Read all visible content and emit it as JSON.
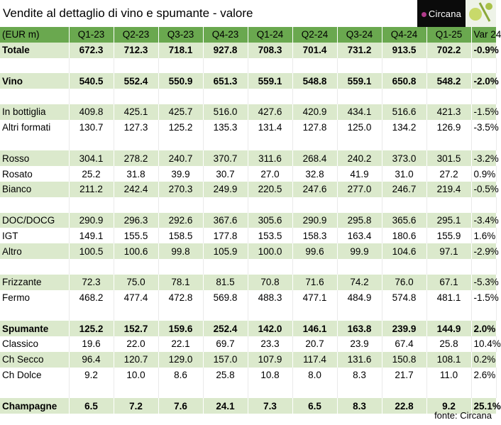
{
  "title": "Vendite al dettaglio di vino e spumante - valore",
  "logo": {
    "text": "Circana",
    "accent": "#b03a8a"
  },
  "header": [
    "(EUR m)",
    "Q1-23",
    "Q2-23",
    "Q3-23",
    "Q4-23",
    "Q1-24",
    "Q2-24",
    "Q3-24",
    "Q4-24",
    "Q1-25",
    "Var 24"
  ],
  "rows": {
    "totale": [
      "Totale",
      "672.3",
      "712.3",
      "718.1",
      "927.8",
      "708.3",
      "701.4",
      "731.2",
      "913.5",
      "702.2",
      "-0.9%"
    ],
    "vino": [
      "Vino",
      "540.5",
      "552.4",
      "550.9",
      "651.3",
      "559.1",
      "548.8",
      "559.1",
      "650.8",
      "548.2",
      "-2.0%"
    ],
    "in_bottiglia": [
      "In bottiglia",
      "409.8",
      "425.1",
      "425.7",
      "516.0",
      "427.6",
      "420.9",
      "434.1",
      "516.6",
      "421.3",
      "-1.5%"
    ],
    "altri_formati": [
      "Altri formati",
      "130.7",
      "127.3",
      "125.2",
      "135.3",
      "131.4",
      "127.8",
      "125.0",
      "134.2",
      "126.9",
      "-3.5%"
    ],
    "rosso": [
      "Rosso",
      "304.1",
      "278.2",
      "240.7",
      "370.7",
      "311.6",
      "268.4",
      "240.2",
      "373.0",
      "301.5",
      "-3.2%"
    ],
    "rosato": [
      "Rosato",
      "25.2",
      "31.8",
      "39.9",
      "30.7",
      "27.0",
      "32.8",
      "41.9",
      "31.0",
      "27.2",
      "0.9%"
    ],
    "bianco": [
      "Bianco",
      "211.2",
      "242.4",
      "270.3",
      "249.9",
      "220.5",
      "247.6",
      "277.0",
      "246.7",
      "219.4",
      "-0.5%"
    ],
    "doc_docg": [
      "DOC/DOCG",
      "290.9",
      "296.3",
      "292.6",
      "367.6",
      "305.6",
      "290.9",
      "295.8",
      "365.6",
      "295.1",
      "-3.4%"
    ],
    "igt": [
      "IGT",
      "149.1",
      "155.5",
      "158.5",
      "177.8",
      "153.5",
      "158.3",
      "163.4",
      "180.6",
      "155.9",
      "1.6%"
    ],
    "altro": [
      "Altro",
      "100.5",
      "100.6",
      "99.8",
      "105.9",
      "100.0",
      "99.6",
      "99.9",
      "104.6",
      "97.1",
      "-2.9%"
    ],
    "frizzante": [
      "Frizzante",
      "72.3",
      "75.0",
      "78.1",
      "81.5",
      "70.8",
      "71.6",
      "74.2",
      "76.0",
      "67.1",
      "-5.3%"
    ],
    "fermo": [
      "Fermo",
      "468.2",
      "477.4",
      "472.8",
      "569.8",
      "488.3",
      "477.1",
      "484.9",
      "574.8",
      "481.1",
      "-1.5%"
    ],
    "spumante": [
      "Spumante",
      "125.2",
      "152.7",
      "159.6",
      "252.4",
      "142.0",
      "146.1",
      "163.8",
      "239.9",
      "144.9",
      "2.0%"
    ],
    "classico": [
      "Classico",
      "19.6",
      "22.0",
      "22.1",
      "69.7",
      "23.3",
      "20.7",
      "23.9",
      "67.4",
      "25.8",
      "10.4%"
    ],
    "ch_secco": [
      "Ch Secco",
      "96.4",
      "120.7",
      "129.0",
      "157.0",
      "107.9",
      "117.4",
      "131.6",
      "150.8",
      "108.1",
      "0.2%"
    ],
    "ch_dolce": [
      "Ch Dolce",
      "9.2",
      "10.0",
      "8.6",
      "25.8",
      "10.8",
      "8.0",
      "8.3",
      "21.7",
      "11.0",
      "2.6%"
    ],
    "champagne": [
      "Champagne",
      "6.5",
      "7.2",
      "7.6",
      "24.1",
      "7.3",
      "6.5",
      "8.3",
      "22.8",
      "9.2",
      "25.1%"
    ]
  },
  "source": "fonte: Circana",
  "colors": {
    "header": "#6aa84f",
    "band": "#dbe9cc"
  }
}
